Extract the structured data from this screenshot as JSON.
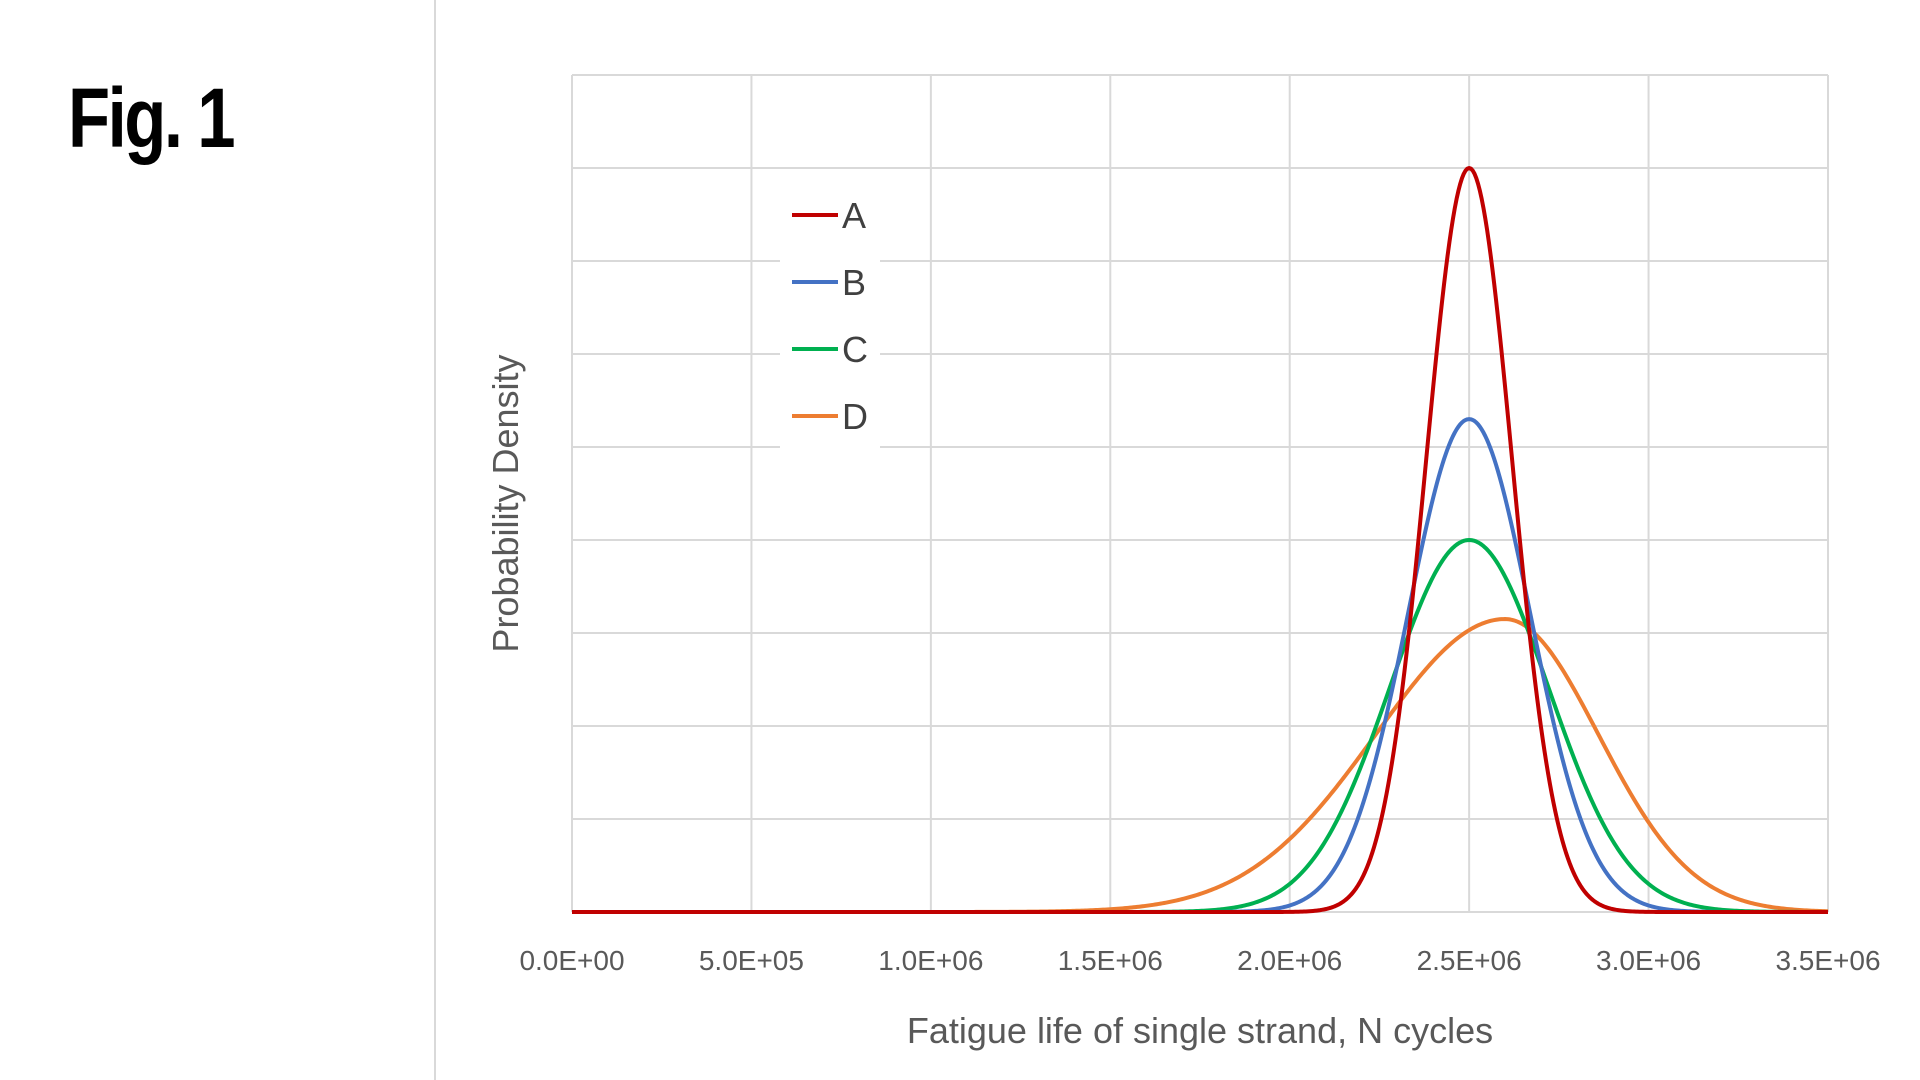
{
  "figure_label": "Fig. 1",
  "chart_data": {
    "type": "line",
    "title": "",
    "xlabel": "Fatigue life of single strand, N cycles",
    "ylabel": "Probability Density",
    "xlim": [
      0,
      3500000
    ],
    "ylim": [
      0,
      9
    ],
    "grid": true,
    "x_tick_labels": [
      "0.0E+00",
      "5.0E+05",
      "1.0E+06",
      "1.5E+06",
      "2.0E+06",
      "2.5E+06",
      "3.0E+06",
      "3.5E+06"
    ],
    "y_tick_labels_shown": false,
    "legend_position": "top-left",
    "series": [
      {
        "name": "A",
        "color": "#c00000",
        "peak_x": 2500000,
        "peak_y": 8.0,
        "spread_left": 120000,
        "spread_right": 120000
      },
      {
        "name": "B",
        "color": "#4472c4",
        "peak_x": 2500000,
        "peak_y": 5.3,
        "spread_left": 170000,
        "spread_right": 170000
      },
      {
        "name": "C",
        "color": "#00b050",
        "peak_x": 2500000,
        "peak_y": 4.0,
        "spread_left": 220000,
        "spread_right": 220000
      },
      {
        "name": "D",
        "color": "#ed7d31",
        "peak_x": 2600000,
        "peak_y": 3.15,
        "spread_left": 360000,
        "spread_right": 260000
      }
    ]
  }
}
